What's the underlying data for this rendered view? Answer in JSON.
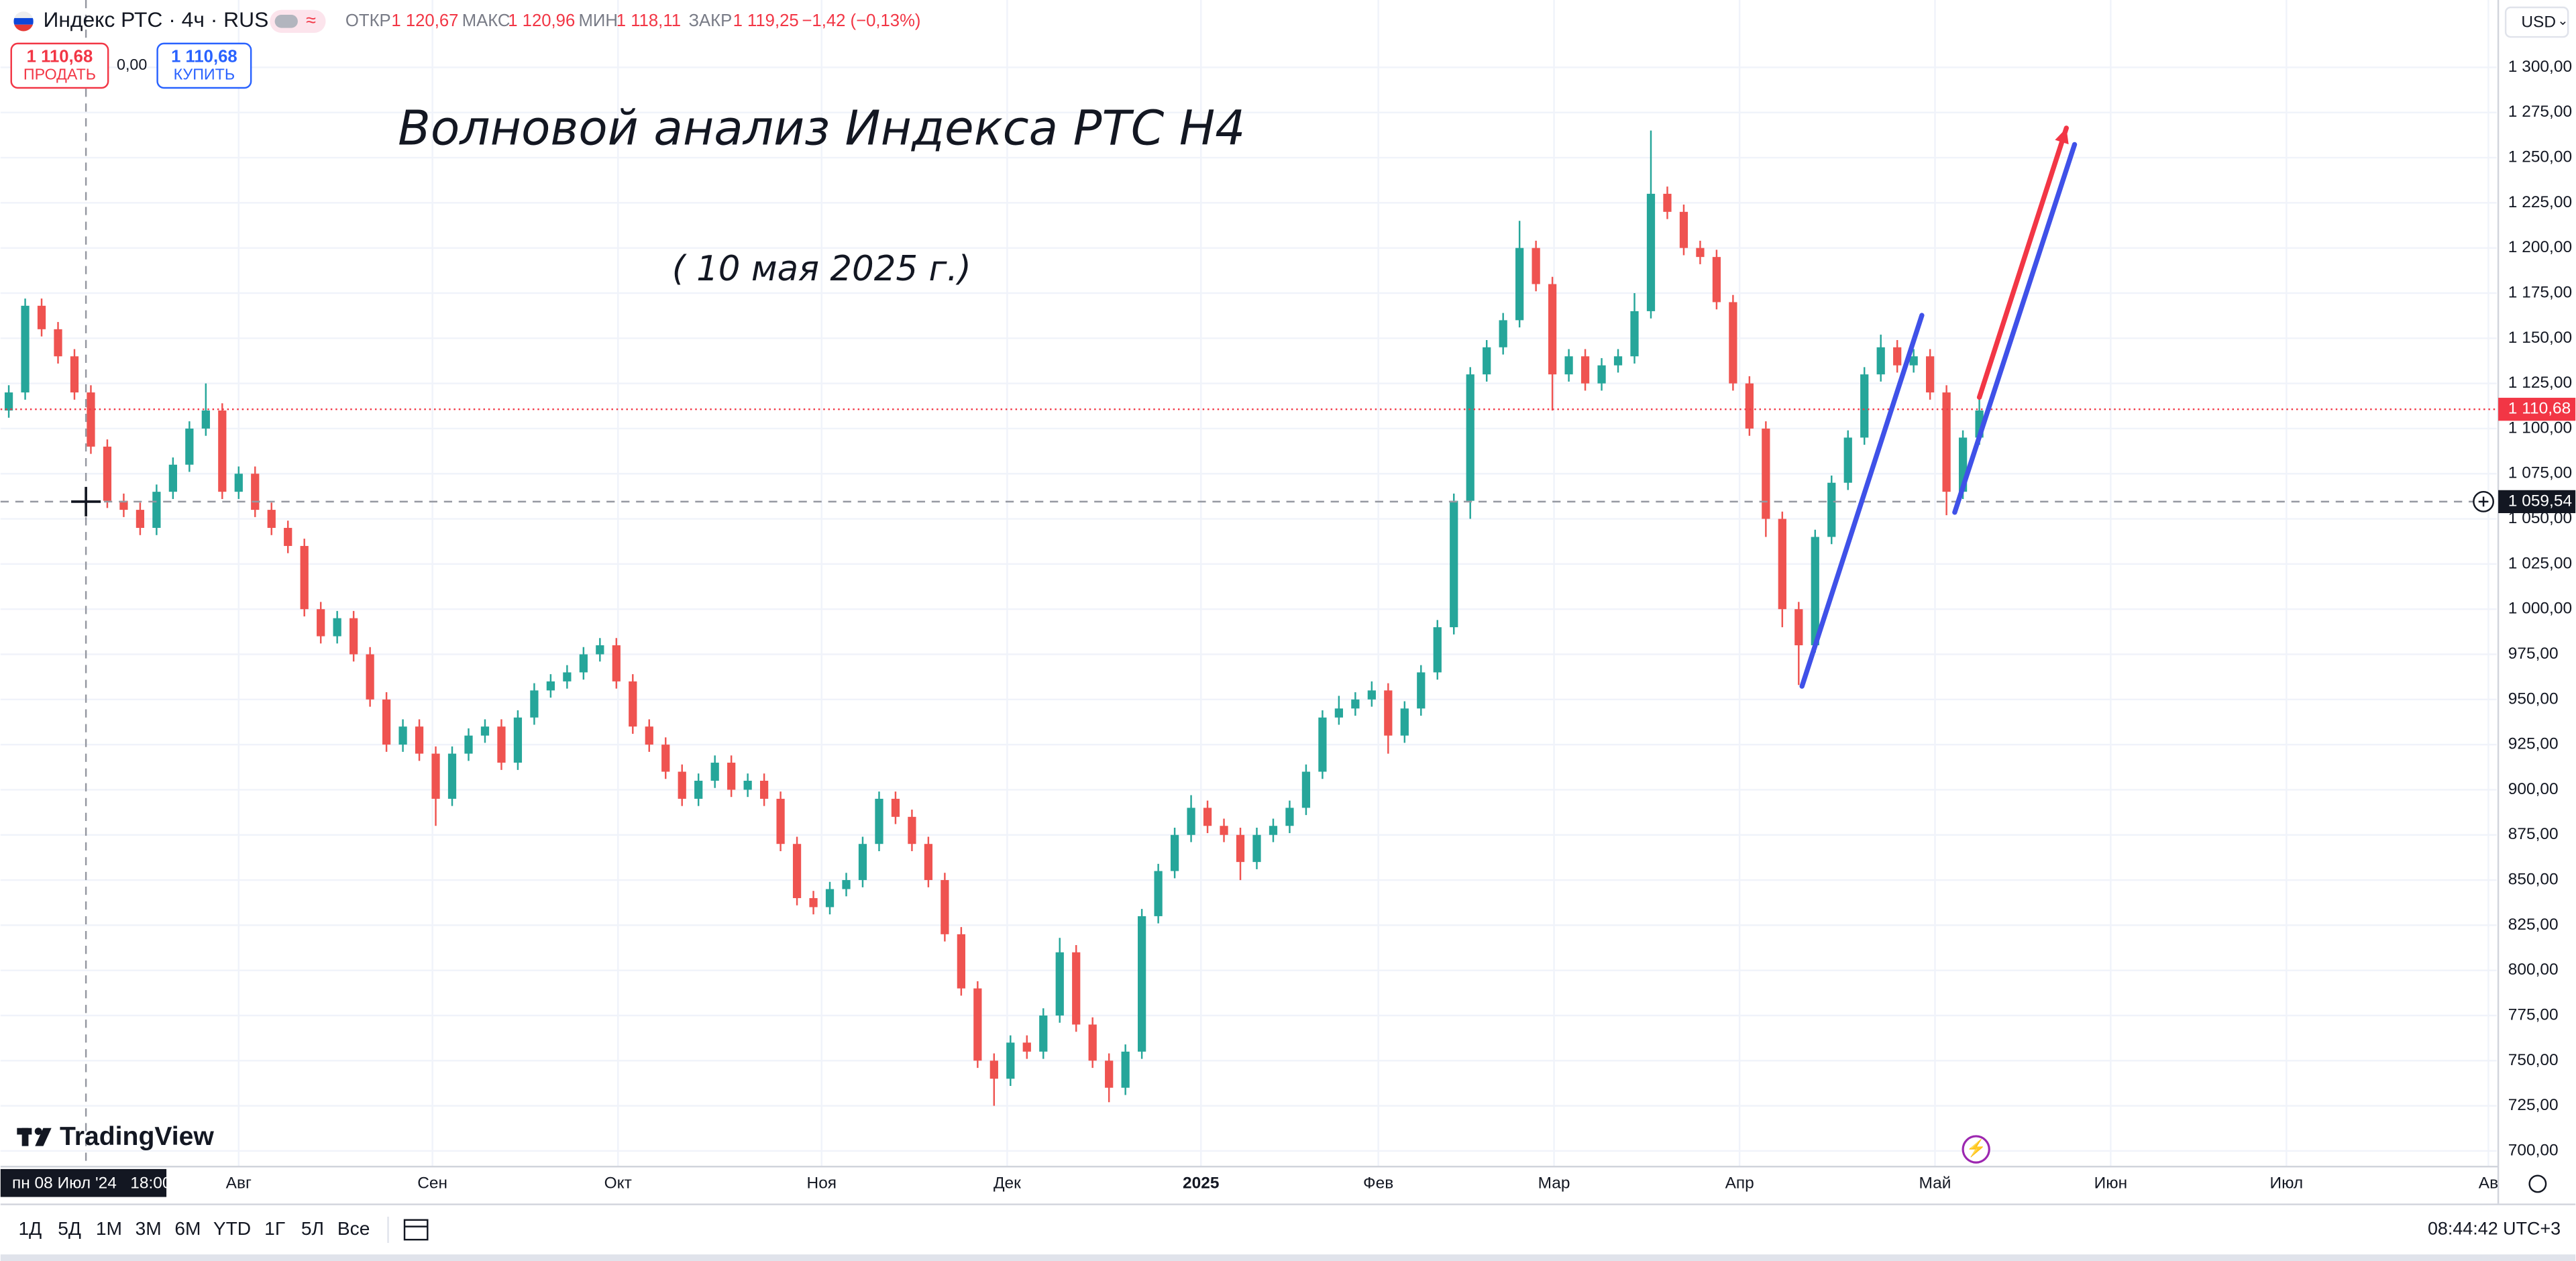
{
  "header": {
    "symbol": "Индекс РТС · 4ч · RUS",
    "ohlc": [
      {
        "label": "ОТКР",
        "value": "1 120,67"
      },
      {
        "label": "МАКС",
        "value": "1 120,96"
      },
      {
        "label": "МИН",
        "value": "1 118,11"
      },
      {
        "label": "ЗАКР",
        "value": "1 119,25"
      }
    ],
    "change": "−1,42 (−0,13%)",
    "sell_price": "1 110,68",
    "sell_label": "ПРОДАТЬ",
    "spread": "0,00",
    "buy_price": "1 110,68",
    "buy_label": "КУПИТЬ",
    "currency": "USD"
  },
  "chart_data": {
    "type": "candlestick",
    "annotations": [
      "Волновой анализ Индекса РТС Н4",
      "( 10 мая 2025 г.)"
    ],
    "up_color": "#26a69a",
    "down_color": "#ef5350",
    "grid": true,
    "categories": [
      null,
      null,
      null,
      null,
      null,
      null,
      null,
      null,
      null,
      null,
      null,
      null,
      null,
      null,
      null,
      null,
      null,
      null,
      null,
      null,
      null,
      null,
      null,
      null,
      null,
      null,
      null,
      null,
      null,
      null,
      null,
      null,
      null,
      null,
      null,
      null,
      null,
      null,
      null,
      null,
      null,
      null,
      null,
      null,
      null,
      null,
      null,
      null,
      null,
      null,
      null,
      null,
      null,
      null,
      null,
      null,
      null,
      null,
      null,
      null,
      null,
      null,
      null,
      null,
      null,
      null,
      null,
      null,
      null,
      null,
      null,
      null,
      null,
      null,
      null,
      null,
      null,
      null,
      null,
      null,
      null,
      null,
      null,
      null,
      null,
      null,
      null,
      null,
      null,
      null,
      null,
      null,
      null,
      null,
      null,
      null,
      null,
      null,
      null,
      null,
      null,
      null,
      null,
      null,
      null,
      null,
      null,
      null,
      null,
      null,
      null,
      null,
      null,
      null,
      null,
      null,
      null,
      null,
      null,
      null,
      null
    ],
    "open": [
      1110,
      1120,
      1168,
      1155,
      1140,
      1120,
      1090,
      1060,
      1055,
      1045,
      1065,
      1080,
      1100,
      1110,
      1065,
      1075,
      1055,
      1045,
      1035,
      1000,
      985,
      995,
      975,
      950,
      925,
      935,
      920,
      895,
      920,
      930,
      935,
      915,
      940,
      955,
      960,
      965,
      975,
      980,
      960,
      935,
      925,
      910,
      895,
      905,
      915,
      900,
      905,
      895,
      870,
      840,
      835,
      845,
      850,
      870,
      895,
      885,
      870,
      850,
      820,
      790,
      750,
      740,
      760,
      755,
      775,
      810,
      770,
      750,
      735,
      755,
      830,
      855,
      875,
      890,
      880,
      875,
      860,
      875,
      880,
      890,
      910,
      940,
      945,
      950,
      955,
      930,
      945,
      965,
      990,
      1060,
      1130,
      1145,
      1160,
      1200,
      1180,
      1130,
      1140,
      1125,
      1135,
      1140,
      1165,
      1230,
      1220,
      1200,
      1195,
      1170,
      1125,
      1100,
      1050,
      1000,
      980,
      1040,
      1070,
      1095,
      1130,
      1145,
      1135,
      1140,
      1120,
      1065,
      1095
    ],
    "high": [
      1124,
      1172,
      1172,
      1159,
      1144,
      1124,
      1094,
      1064,
      1059,
      1069,
      1084,
      1104,
      1125,
      1114,
      1079,
      1079,
      1059,
      1049,
      1039,
      1004,
      999,
      999,
      979,
      954,
      939,
      939,
      924,
      924,
      934,
      939,
      939,
      944,
      959,
      964,
      969,
      979,
      984,
      984,
      964,
      939,
      929,
      914,
      909,
      919,
      919,
      909,
      909,
      899,
      874,
      844,
      849,
      854,
      874,
      899,
      899,
      889,
      874,
      854,
      824,
      794,
      754,
      764,
      764,
      779,
      818,
      814,
      774,
      754,
      759,
      834,
      859,
      879,
      897,
      894,
      884,
      879,
      879,
      884,
      894,
      914,
      944,
      952,
      954,
      960,
      959,
      949,
      969,
      994,
      1064,
      1134,
      1149,
      1164,
      1215,
      1204,
      1184,
      1144,
      1144,
      1139,
      1144,
      1175,
      1265,
      1234,
      1224,
      1204,
      1199,
      1174,
      1129,
      1104,
      1054,
      1004,
      1044,
      1074,
      1099,
      1134,
      1152,
      1149,
      1144,
      1144,
      1124,
      1099,
      1120
    ],
    "low": [
      1106,
      1116,
      1151,
      1136,
      1116,
      1086,
      1056,
      1051,
      1041,
      1041,
      1061,
      1076,
      1096,
      1061,
      1061,
      1051,
      1041,
      1031,
      996,
      981,
      981,
      971,
      946,
      921,
      921,
      916,
      880,
      891,
      916,
      926,
      911,
      911,
      936,
      951,
      956,
      961,
      971,
      956,
      931,
      921,
      906,
      891,
      891,
      901,
      896,
      896,
      891,
      866,
      836,
      831,
      831,
      841,
      846,
      866,
      881,
      866,
      846,
      816,
      786,
      746,
      725,
      736,
      751,
      751,
      771,
      766,
      746,
      727,
      731,
      751,
      826,
      851,
      871,
      876,
      871,
      850,
      856,
      871,
      876,
      886,
      906,
      936,
      941,
      946,
      920,
      926,
      941,
      961,
      986,
      1050,
      1126,
      1141,
      1156,
      1176,
      1110,
      1126,
      1121,
      1121,
      1131,
      1136,
      1161,
      1216,
      1196,
      1191,
      1166,
      1121,
      1096,
      1040,
      990,
      958,
      976,
      1036,
      1066,
      1091,
      1126,
      1131,
      1131,
      1116,
      1052,
      1061,
      1091
    ],
    "close": [
      1120,
      1168,
      1155,
      1140,
      1120,
      1090,
      1060,
      1055,
      1045,
      1065,
      1080,
      1100,
      1110,
      1065,
      1075,
      1055,
      1045,
      1035,
      1000,
      985,
      995,
      975,
      950,
      925,
      935,
      920,
      895,
      920,
      930,
      935,
      915,
      940,
      955,
      960,
      965,
      975,
      980,
      960,
      935,
      925,
      910,
      895,
      905,
      915,
      900,
      905,
      895,
      870,
      840,
      835,
      845,
      850,
      870,
      895,
      885,
      870,
      850,
      820,
      790,
      750,
      740,
      760,
      755,
      775,
      810,
      770,
      750,
      735,
      755,
      830,
      855,
      875,
      890,
      880,
      875,
      860,
      875,
      880,
      890,
      910,
      940,
      945,
      950,
      955,
      930,
      945,
      965,
      990,
      1060,
      1130,
      1145,
      1160,
      1200,
      1180,
      1130,
      1140,
      1125,
      1135,
      1140,
      1165,
      1230,
      1220,
      1200,
      1195,
      1170,
      1125,
      1100,
      1050,
      1000,
      980,
      1040,
      1070,
      1095,
      1130,
      1145,
      1135,
      1140,
      1120,
      1065,
      1095,
      1110
    ],
    "xlim": [
      -0.5,
      151.5
    ],
    "xticks": [
      {
        "value": 14,
        "label": "Авг"
      },
      {
        "value": 25.8,
        "label": "Сен"
      },
      {
        "value": 37.1,
        "label": "Окт"
      },
      {
        "value": 49.5,
        "label": "Ноя"
      },
      {
        "value": 60.8,
        "label": "Дек"
      },
      {
        "value": 72.6,
        "label": "2025"
      },
      {
        "value": 83.4,
        "label": "Фев"
      },
      {
        "value": 94.1,
        "label": "Мар"
      },
      {
        "value": 105.4,
        "label": "Апр"
      },
      {
        "value": 117.3,
        "label": "Май"
      },
      {
        "value": 128,
        "label": "Июн"
      },
      {
        "value": 138.7,
        "label": "Июл"
      },
      {
        "value": 151,
        "label": "Ав"
      }
    ],
    "ylim": [
      691.8,
      1337.3
    ],
    "yticks": [
      {
        "value": 700,
        "label": "700,00"
      },
      {
        "value": 725,
        "label": "725,00"
      },
      {
        "value": 750,
        "label": "750,00"
      },
      {
        "value": 775,
        "label": "775,00"
      },
      {
        "value": 800,
        "label": "800,00"
      },
      {
        "value": 825,
        "label": "825,00"
      },
      {
        "value": 850,
        "label": "850,00"
      },
      {
        "value": 875,
        "label": "875,00"
      },
      {
        "value": 900,
        "label": "900,00"
      },
      {
        "value": 925,
        "label": "925,00"
      },
      {
        "value": 950,
        "label": "950,00"
      },
      {
        "value": 975,
        "label": "975,00"
      },
      {
        "value": 1000,
        "label": "1 000,00"
      },
      {
        "value": 1025,
        "label": "1 025,00"
      },
      {
        "value": 1050,
        "label": "1 050,00"
      },
      {
        "value": 1075,
        "label": "1 075,00"
      },
      {
        "value": 1100,
        "label": "1 100,00"
      },
      {
        "value": 1125,
        "label": "1 125,00"
      },
      {
        "value": 1150,
        "label": "1 150,00"
      },
      {
        "value": 1175,
        "label": "1 175,00"
      },
      {
        "value": 1200,
        "label": "1 200,00"
      },
      {
        "value": 1225,
        "label": "1 225,00"
      },
      {
        "value": 1250,
        "label": "1 250,00"
      },
      {
        "value": 1275,
        "label": "1 275,00"
      },
      {
        "value": 1300,
        "label": "1 300,00"
      }
    ],
    "last_price": {
      "value": 1110.68,
      "label": "1 110,68",
      "color": "#f23645"
    },
    "crosshair": {
      "x": 4.7,
      "price": {
        "value": 1059.54,
        "label": "1 059,54"
      },
      "time_label": "пн 08 Июл '24   18:00"
    },
    "drawings": [
      {
        "color": "#3f51e8",
        "arrow": false,
        "points": [
          [
            109.2,
            957.3
          ],
          [
            116.5,
            1162.7
          ]
        ]
      },
      {
        "color": "#3f51e8",
        "arrow": false,
        "points": [
          [
            118.5,
            1053.6
          ],
          [
            125.8,
            1257.3
          ]
        ]
      },
      {
        "color": "#f23645",
        "arrow": true,
        "points": [
          [
            120,
            1117.3
          ],
          [
            125.3,
            1266.4
          ]
        ]
      }
    ]
  },
  "logo": "TradingView",
  "toolbar": {
    "timeframes": [
      "1Д",
      "5Д",
      "1М",
      "3М",
      "6М",
      "YTD",
      "1Г",
      "5Л",
      "Все"
    ],
    "clock": "08:44:42 UTC+3"
  }
}
